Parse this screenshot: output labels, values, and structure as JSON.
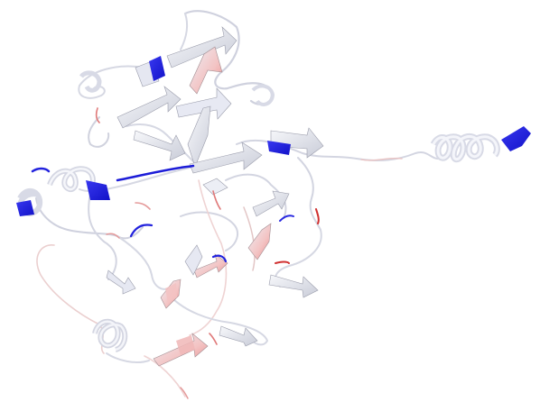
{
  "viewer": {
    "background_color": "#ffffff",
    "representation": "cartoon",
    "palette": {
      "neutral": "#e6e8f0",
      "neutral_edge": "#9a9cab",
      "high": "#1a1ae0",
      "low": "#e23c3c",
      "low_light": "#f2b9b9",
      "high_light": "#aab0f0"
    },
    "elements": {
      "coil": "coil-segment",
      "strand": "beta-strand-arrow",
      "helix": "alpha-helix"
    }
  }
}
